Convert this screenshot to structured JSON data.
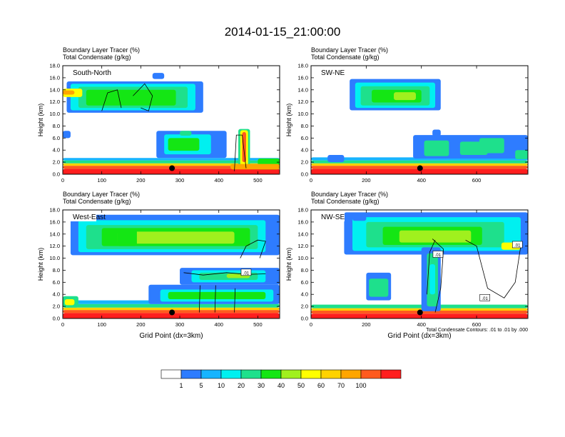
{
  "title": "2014-01-15_21:00:00",
  "legend": {
    "colors": [
      "#ffffff",
      "#2e7cff",
      "#16b4ff",
      "#00f0f0",
      "#1ee08c",
      "#14e614",
      "#a0f01e",
      "#ffff00",
      "#ffd200",
      "#ffa500",
      "#ff5a1e",
      "#ff1e1e"
    ],
    "labels": [
      "1",
      "5",
      "10",
      "20",
      "30",
      "40",
      "50",
      "60",
      "70",
      "100"
    ]
  },
  "contour_note": "Total Condensate Contours: .01 to .01 by .000",
  "chart_data": [
    {
      "type": "heatmap",
      "panel": "South-North",
      "label": "South-North",
      "title_line1": "Boundary Layer Tracer   (%)",
      "title_line2": "Total Condensate   (g/kg)",
      "ylabel": "Height (km)",
      "xlabel": "",
      "xlim": [
        0,
        556
      ],
      "ylim": [
        0,
        18
      ],
      "xticks": [
        0,
        100,
        200,
        300,
        400,
        500
      ],
      "xtick_labels": [
        "0",
        "100",
        "200",
        "300",
        "400",
        "500"
      ],
      "yticks": [
        0,
        2,
        4,
        6,
        8,
        10,
        12,
        14,
        16,
        18
      ],
      "ytick_labels": [
        "0.0",
        "2.0",
        "4.0",
        "6.0",
        "8.0",
        "10.0",
        "12.0",
        "14.0",
        "16.0",
        "18.0"
      ],
      "marker": {
        "x": 280,
        "y": 1.0
      },
      "contour_labels": []
    },
    {
      "type": "heatmap",
      "panel": "SW-NE",
      "label": "SW-NE",
      "title_line1": "Boundary Layer Tracer   (%)",
      "title_line2": "Total Condensate   (g/kg)",
      "ylabel": "Height (km)",
      "xlabel": "",
      "xlim": [
        0,
        786
      ],
      "ylim": [
        0,
        18
      ],
      "xticks": [
        0,
        200,
        400,
        600
      ],
      "xtick_labels": [
        "0",
        "200",
        "400",
        "600"
      ],
      "yticks": [
        0,
        2,
        4,
        6,
        8,
        10,
        12,
        14,
        16,
        18
      ],
      "ytick_labels": [
        "0.0",
        "2.0",
        "4.0",
        "6.0",
        "8.0",
        "10.0",
        "12.0",
        "14.0",
        "16.0",
        "18.0"
      ],
      "marker": {
        "x": 395,
        "y": 1.0
      },
      "contour_labels": []
    },
    {
      "type": "heatmap",
      "panel": "West-East",
      "label": "West-East",
      "title_line1": "Boundary Layer Tracer   (%)",
      "title_line2": "Total Condensate   (g/kg)",
      "ylabel": "Height (km)",
      "xlabel": "Grid Point (dx=3km)",
      "xlim": [
        0,
        556
      ],
      "ylim": [
        0,
        18
      ],
      "xticks": [
        0,
        100,
        200,
        300,
        400,
        500
      ],
      "xtick_labels": [
        "0",
        "100",
        "200",
        "300",
        "400",
        "500"
      ],
      "yticks": [
        0,
        2,
        4,
        6,
        8,
        10,
        12,
        14,
        16,
        18
      ],
      "ytick_labels": [
        "0.0",
        "2.0",
        "4.0",
        "6.0",
        "8.0",
        "10.0",
        "12.0",
        "14.0",
        "16.0",
        "18.0"
      ],
      "marker": {
        "x": 280,
        "y": 1.0
      },
      "contour_labels": [
        {
          "text": ".01",
          "x": 470,
          "y": 7.6
        }
      ]
    },
    {
      "type": "heatmap",
      "panel": "NW-SE",
      "label": "NW-SE",
      "title_line1": "Boundary Layer Tracer   (%)",
      "title_line2": "Total Condensate   (g/kg)",
      "ylabel": "Height (km)",
      "xlabel": "Grid Point (dx=3km)",
      "xlim": [
        0,
        786
      ],
      "ylim": [
        0,
        18
      ],
      "xticks": [
        0,
        200,
        400,
        600
      ],
      "xtick_labels": [
        "0",
        "200",
        "400",
        "600"
      ],
      "yticks": [
        0,
        2,
        4,
        6,
        8,
        10,
        12,
        14,
        16,
        18
      ],
      "ytick_labels": [
        "0.0",
        "2.0",
        "4.0",
        "6.0",
        "8.0",
        "10.0",
        "12.0",
        "14.0",
        "16.0",
        "18.0"
      ],
      "marker": {
        "x": 395,
        "y": 1.0
      },
      "contour_labels": [
        {
          "text": ".01",
          "x": 460,
          "y": 10.6
        },
        {
          "text": ".01",
          "x": 630,
          "y": 3.4
        },
        {
          "text": ".01",
          "x": 748,
          "y": 12.2
        }
      ]
    }
  ]
}
